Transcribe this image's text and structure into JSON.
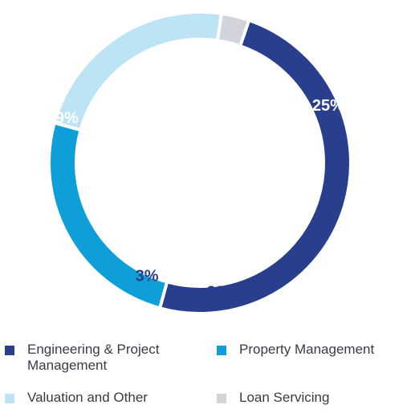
{
  "chart_data": {
    "type": "pie",
    "style": "donut",
    "categories": [
      "Engineering & Project Management",
      "Property Management",
      "Valuation and Other",
      "Loan Servicing"
    ],
    "values": [
      49,
      25,
      23,
      3
    ],
    "labels": [
      "49%",
      "25%",
      "23%",
      "3%"
    ],
    "unit": "%",
    "colors": [
      "#293f8e",
      "#0e9fd8",
      "#bce4f5",
      "#d3d3dd"
    ],
    "label_colors": [
      "#ffffff",
      "#ffffff",
      "#293f8e",
      "#293f8e"
    ],
    "legend": {
      "placement": "bottom",
      "items": [
        {
          "label": "Engineering & Project Management",
          "color": "#293f8e"
        },
        {
          "label": "Property Management",
          "color": "#0e9fd8"
        },
        {
          "label": "Valuation and Other",
          "color": "#bce4f5"
        },
        {
          "label": "Loan Servicing",
          "color": "#d3d3dd"
        }
      ]
    }
  }
}
